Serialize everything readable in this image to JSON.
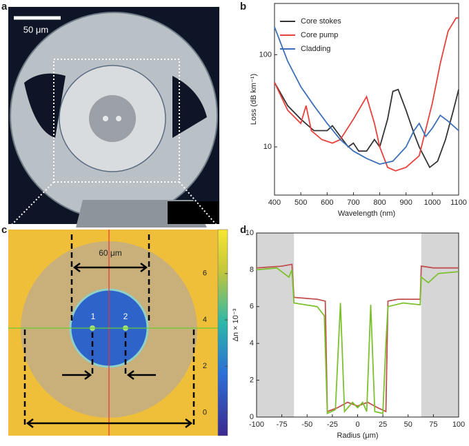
{
  "panel_labels": [
    "a",
    "b",
    "c",
    "d"
  ],
  "image_a": {
    "scale_bar": "50 μm"
  },
  "chart_data": [
    {
      "type": "line",
      "log_y": true,
      "xlabel": "Wavelength (nm)",
      "ylabel": "Loss (dB km⁻¹)",
      "xlim": [
        400,
        1100
      ],
      "xticks": [
        400,
        500,
        600,
        700,
        800,
        900,
        1000,
        1100
      ],
      "ylim": [
        3,
        360
      ],
      "yticks": [
        10,
        100
      ],
      "legend": "upper left",
      "series": [
        {
          "name": "Core stokes",
          "color": "#333333",
          "x": [
            400,
            450,
            500,
            550,
            600,
            620,
            650,
            680,
            700,
            720,
            750,
            780,
            800,
            830,
            850,
            870,
            900,
            930,
            950,
            990,
            1020,
            1050,
            1080,
            1100
          ],
          "values": [
            50,
            28,
            20,
            15,
            15,
            17,
            13,
            10,
            11,
            9,
            9,
            12,
            10,
            20,
            40,
            42,
            25,
            14,
            10,
            6,
            7,
            12,
            25,
            42
          ]
        },
        {
          "name": "Core pump",
          "color": "#e8413c",
          "x": [
            400,
            450,
            500,
            520,
            540,
            580,
            620,
            650,
            700,
            750,
            780,
            800,
            830,
            860,
            900,
            950,
            1000,
            1030,
            1060,
            1090,
            1100
          ],
          "values": [
            50,
            25,
            18,
            28,
            15,
            12,
            11,
            12,
            20,
            35,
            18,
            10,
            6,
            5.5,
            6,
            8,
            30,
            80,
            180,
            250,
            250
          ]
        },
        {
          "name": "Cladding",
          "color": "#3a6fb7",
          "x": [
            400,
            450,
            500,
            550,
            600,
            650,
            700,
            750,
            800,
            850,
            900,
            930,
            950,
            975,
            1000,
            1030,
            1060,
            1100
          ],
          "values": [
            200,
            85,
            45,
            28,
            18,
            12,
            9,
            7.5,
            6.5,
            7,
            10,
            15,
            18,
            13,
            16,
            22,
            19,
            15
          ]
        }
      ]
    },
    {
      "type": "line",
      "log_y": false,
      "xlabel": "Radius (μm)",
      "ylabel": "Δn × 10⁻³",
      "xlim": [
        -100,
        100
      ],
      "xticks": [
        -100,
        -75,
        -50,
        -25,
        0,
        25,
        50,
        75,
        100
      ],
      "ylim": [
        0,
        10
      ],
      "yticks": [
        0,
        2,
        4,
        6,
        8,
        10
      ],
      "shaded": [
        [
          -100,
          -63
        ],
        [
          63,
          100
        ]
      ],
      "series": [
        {
          "color": "#c0504d",
          "x": [
            -100,
            -75,
            -65,
            -63,
            -40,
            -32,
            -30,
            -20,
            -10,
            0,
            10,
            20,
            28,
            30,
            40,
            62,
            63,
            75,
            100
          ],
          "values": [
            8.1,
            8.2,
            8.3,
            6.5,
            6.4,
            6.3,
            0.3,
            0.5,
            0.8,
            0.6,
            0.8,
            0.5,
            0.3,
            6.3,
            6.4,
            6.4,
            8.2,
            8.1,
            8.1
          ]
        },
        {
          "color": "#7cc12d",
          "x": [
            -100,
            -80,
            -68,
            -65,
            -63,
            -40,
            -33,
            -30,
            -22,
            -17,
            -13,
            -5,
            0,
            5,
            9,
            13,
            17,
            25,
            28,
            30,
            45,
            62,
            63,
            70,
            80,
            100
          ],
          "values": [
            8.0,
            8.1,
            7.6,
            8.0,
            6.2,
            6.0,
            5.5,
            0.2,
            0.4,
            6.2,
            0.3,
            0.8,
            0.5,
            0.8,
            0.3,
            6.1,
            0.3,
            0.2,
            4.0,
            6.0,
            6.2,
            6.1,
            7.6,
            7.3,
            7.8,
            7.9
          ]
        }
      ]
    },
    {
      "type": "heatmap",
      "annotations": [
        "60 μm",
        "1",
        "2"
      ],
      "colorbar_lim": [
        -1,
        7.9
      ],
      "colorbar_ticks": [
        0,
        2,
        4,
        6
      ]
    }
  ]
}
